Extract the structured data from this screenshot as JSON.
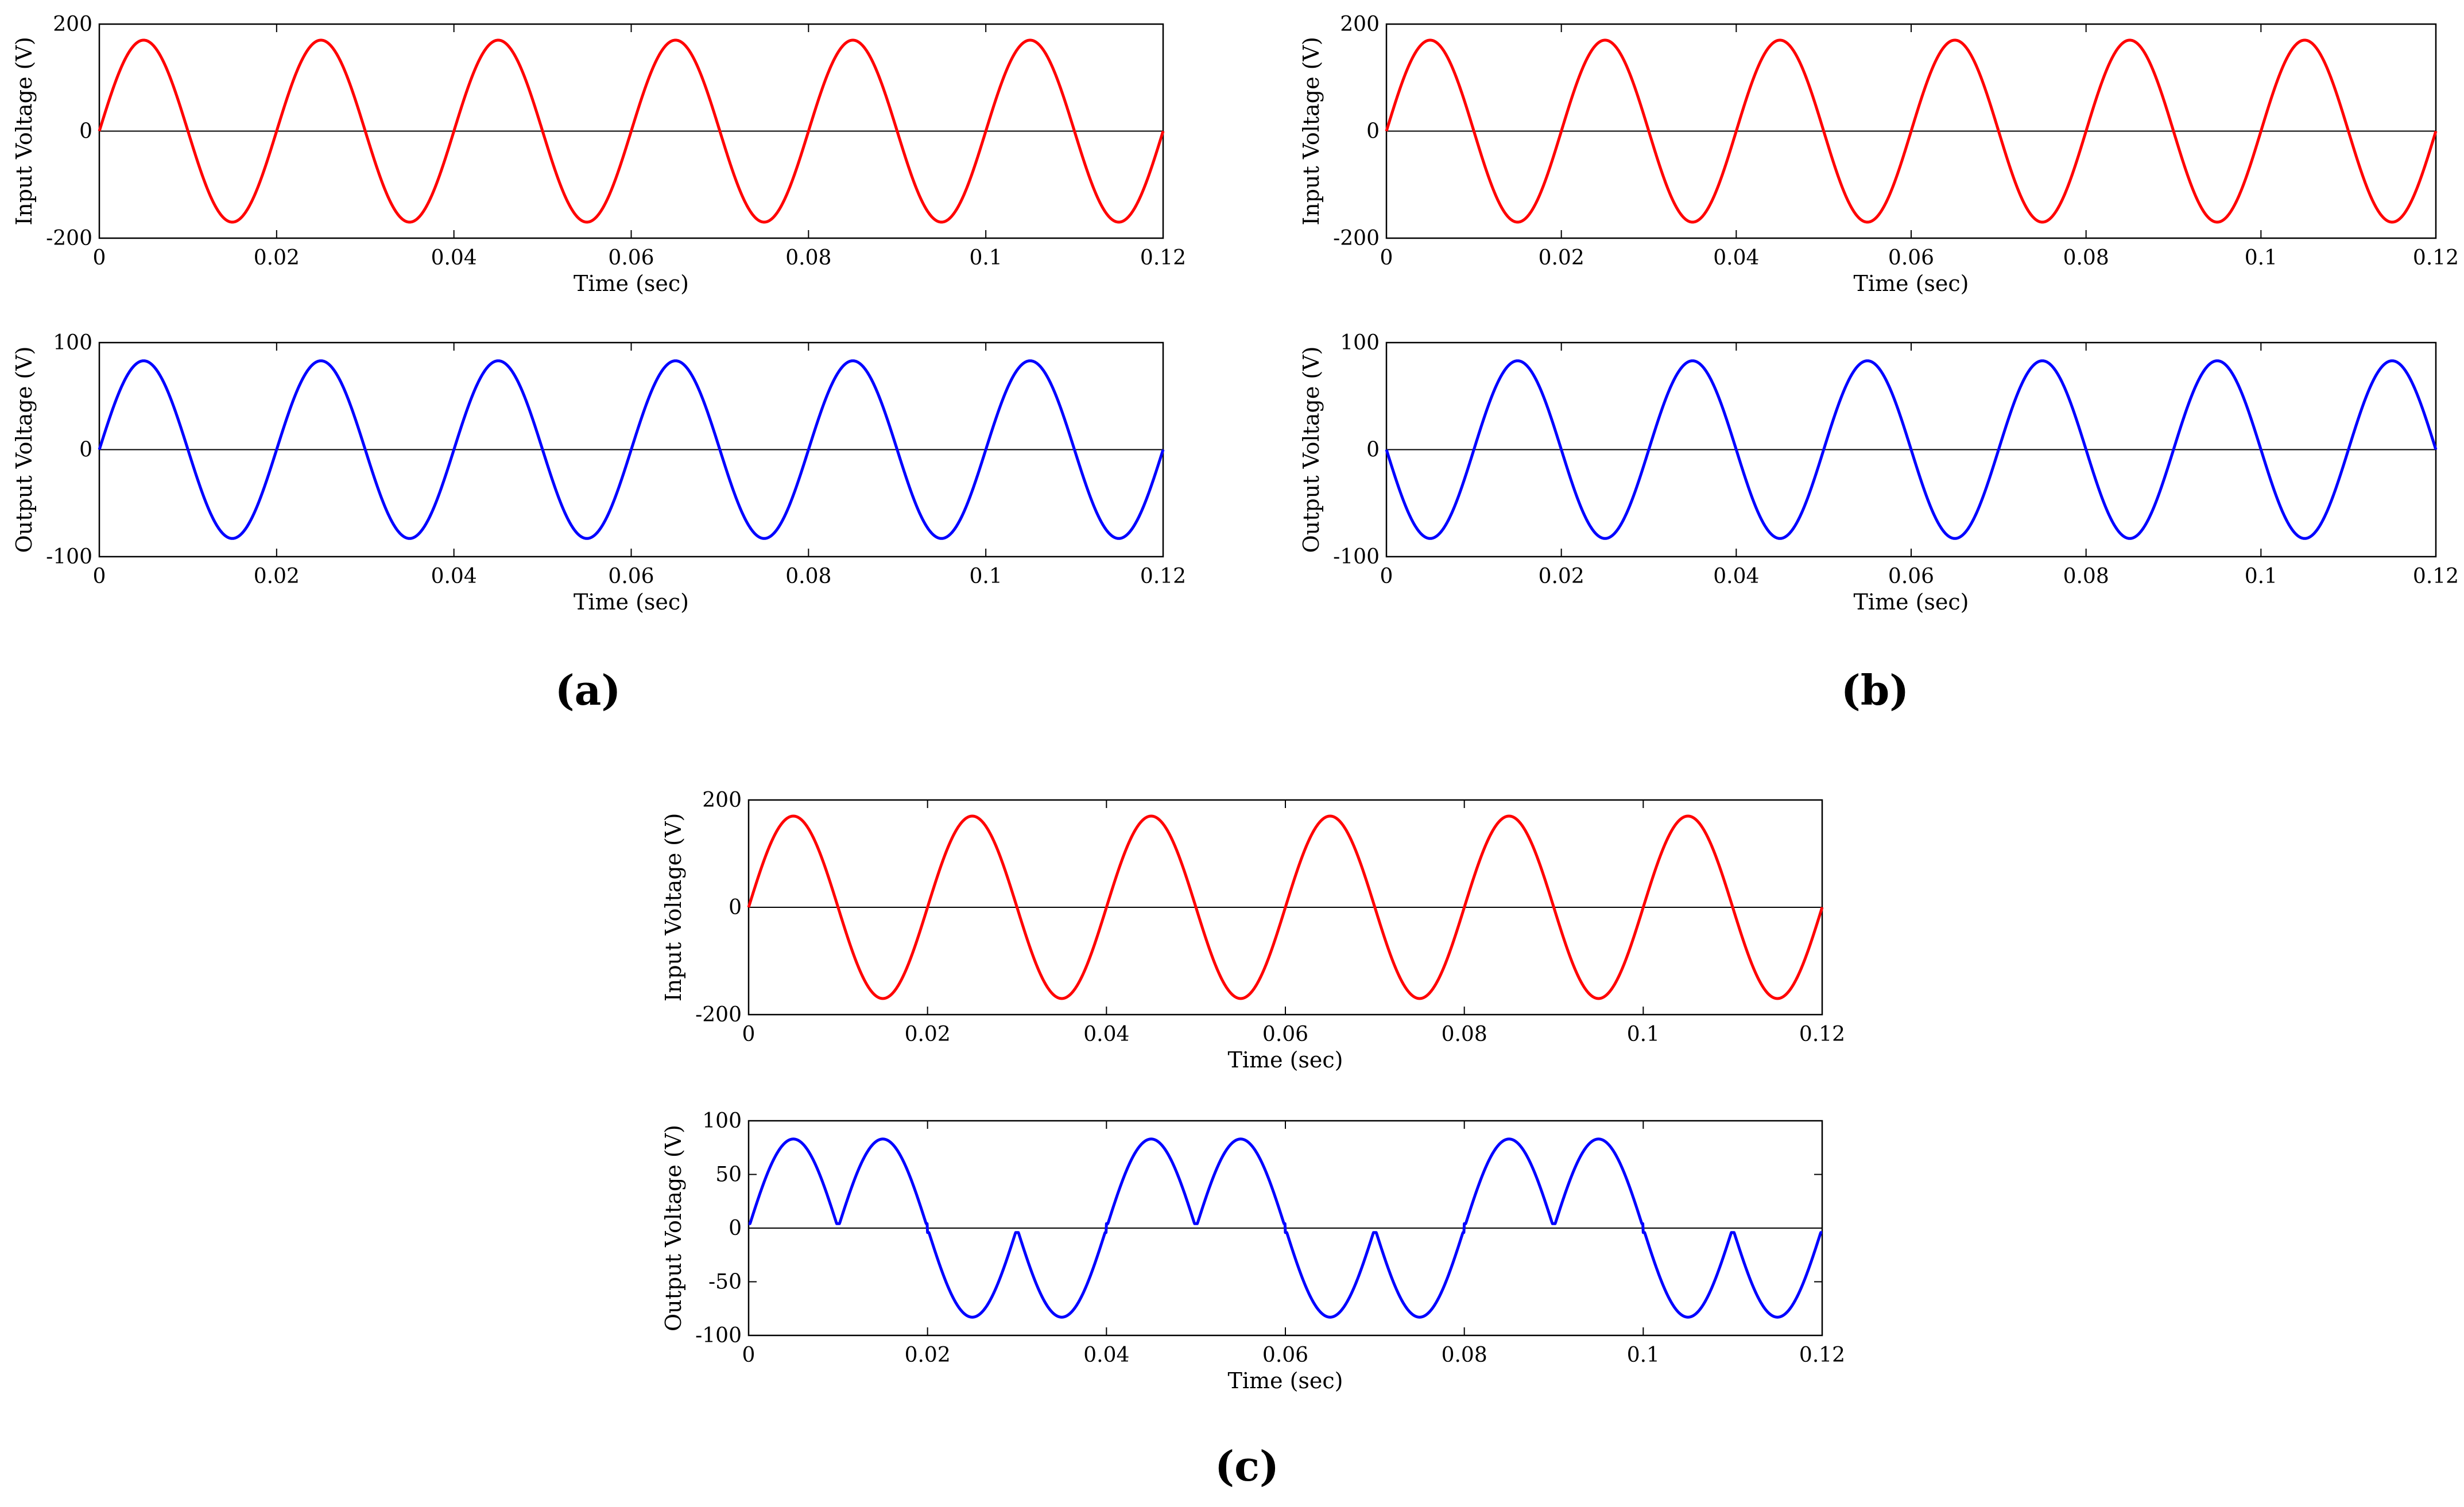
{
  "figure": {
    "panel_labels": [
      "(a)",
      "(b)",
      "(c)"
    ]
  },
  "chart_data": [
    {
      "panel": "a",
      "position": "top",
      "type": "line",
      "xlabel": "Time (sec)",
      "ylabel": "Input Voltage (V)",
      "xlim": [
        0,
        0.12
      ],
      "ylim": [
        -200,
        200
      ],
      "xticks": [
        0,
        0.02,
        0.04,
        0.06,
        0.08,
        0.1,
        0.12
      ],
      "xtick_labels": [
        "0",
        "0.02",
        "0.04",
        "0.06",
        "0.08",
        "0.1",
        "0.12"
      ],
      "yticks": [
        -200,
        0,
        200
      ],
      "ytick_labels": [
        "-200",
        "0",
        "200"
      ],
      "zero_line": true,
      "series": [
        {
          "color": "#ff0000",
          "waveform": "sine",
          "amplitude": 170,
          "frequency_hz": 50,
          "phase": "positive"
        }
      ]
    },
    {
      "panel": "a",
      "position": "bottom",
      "type": "line",
      "xlabel": "Time (sec)",
      "ylabel": "Output Voltage (V)",
      "xlim": [
        0,
        0.12
      ],
      "ylim": [
        -100,
        100
      ],
      "xticks": [
        0,
        0.02,
        0.04,
        0.06,
        0.08,
        0.1,
        0.12
      ],
      "xtick_labels": [
        "0",
        "0.02",
        "0.04",
        "0.06",
        "0.08",
        "0.1",
        "0.12"
      ],
      "yticks": [
        -100,
        0,
        100
      ],
      "ytick_labels": [
        "-100",
        "0",
        "100"
      ],
      "zero_line": true,
      "series": [
        {
          "color": "#0000ff",
          "waveform": "sine",
          "amplitude": 83,
          "frequency_hz": 50,
          "phase": "in-phase"
        }
      ]
    },
    {
      "panel": "b",
      "position": "top",
      "type": "line",
      "xlabel": "Time (sec)",
      "ylabel": "Input Voltage (V)",
      "xlim": [
        0,
        0.12
      ],
      "ylim": [
        -200,
        200
      ],
      "xticks": [
        0,
        0.02,
        0.04,
        0.06,
        0.08,
        0.1,
        0.12
      ],
      "xtick_labels": [
        "0",
        "0.02",
        "0.04",
        "0.06",
        "0.08",
        "0.1",
        "0.12"
      ],
      "yticks": [
        -200,
        0,
        200
      ],
      "ytick_labels": [
        "-200",
        "0",
        "200"
      ],
      "zero_line": true,
      "series": [
        {
          "color": "#ff0000",
          "waveform": "sine",
          "amplitude": 170,
          "frequency_hz": 50,
          "phase": "positive"
        }
      ]
    },
    {
      "panel": "b",
      "position": "bottom",
      "type": "line",
      "xlabel": "Time (sec)",
      "ylabel": "Output Voltage (V)",
      "xlim": [
        0,
        0.12
      ],
      "ylim": [
        -100,
        100
      ],
      "xticks": [
        0,
        0.02,
        0.04,
        0.06,
        0.08,
        0.1,
        0.12
      ],
      "xtick_labels": [
        "0",
        "0.02",
        "0.04",
        "0.06",
        "0.08",
        "0.1",
        "0.12"
      ],
      "yticks": [
        -100,
        0,
        100
      ],
      "ytick_labels": [
        "-100",
        "0",
        "100"
      ],
      "zero_line": true,
      "series": [
        {
          "color": "#0000ff",
          "waveform": "sine",
          "amplitude": 83,
          "frequency_hz": 50,
          "phase": "inverted"
        }
      ]
    },
    {
      "panel": "c",
      "position": "top",
      "type": "line",
      "xlabel": "Time (sec)",
      "ylabel": "Input Voltage (V)",
      "xlim": [
        0,
        0.12
      ],
      "ylim": [
        -200,
        200
      ],
      "xticks": [
        0,
        0.02,
        0.04,
        0.06,
        0.08,
        0.1,
        0.12
      ],
      "xtick_labels": [
        "0",
        "0.02",
        "0.04",
        "0.06",
        "0.08",
        "0.1",
        "0.12"
      ],
      "yticks": [
        -200,
        0,
        200
      ],
      "ytick_labels": [
        "-200",
        "0",
        "200"
      ],
      "zero_line": true,
      "series": [
        {
          "color": "#ff0000",
          "waveform": "sine",
          "amplitude": 170,
          "frequency_hz": 50,
          "phase": "positive"
        }
      ]
    },
    {
      "panel": "c",
      "position": "bottom",
      "type": "line",
      "xlabel": "Time (sec)",
      "ylabel": "Output Voltage (V)",
      "xlim": [
        0,
        0.12
      ],
      "ylim": [
        -100,
        100
      ],
      "xticks": [
        0,
        0.02,
        0.04,
        0.06,
        0.08,
        0.1,
        0.12
      ],
      "xtick_labels": [
        "0",
        "0.02",
        "0.04",
        "0.06",
        "0.08",
        "0.1",
        "0.12"
      ],
      "yticks": [
        -100,
        -50,
        0,
        50,
        100
      ],
      "ytick_labels": [
        "-100",
        "-50",
        "0",
        "50",
        "100"
      ],
      "zero_line": true,
      "series": [
        {
          "color": "#0000ff",
          "waveform": "sine-with-half-cycle-polarity-switching",
          "amplitude": 83,
          "frequency_hz": 50,
          "polarity_sequence": [
            1,
            1,
            -1,
            -1,
            1,
            1,
            -1,
            -1,
            1,
            1,
            -1,
            -1
          ],
          "half_cycle_s": 0.01
        }
      ]
    }
  ]
}
